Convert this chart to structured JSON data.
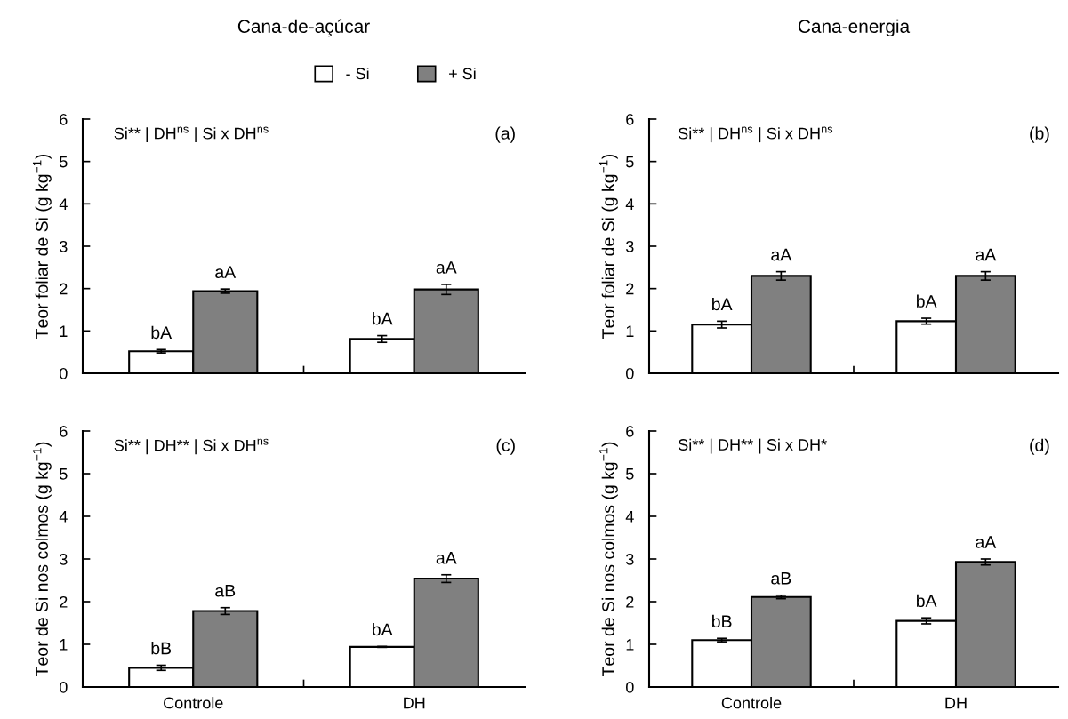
{
  "chart_data": [
    {
      "type": "bar",
      "title": "Cana-de-açúcar",
      "ylabel": "Teor foliar de Si (g kg$^{−1}$)",
      "annotations": [
        "Si** | DH$^{ns}$ | Si x DH$^{ns}$",
        "(a)"
      ],
      "categories": [
        null,
        null
      ],
      "ylim": [
        0,
        6
      ],
      "yticks": [
        0,
        1,
        2,
        3,
        4,
        5,
        6
      ],
      "tick_labels": "y",
      "legend": "top",
      "series": [
        {
          "name": "- Si",
          "color": "#ffffff",
          "values": [
            0.52,
            0.81
          ],
          "errors": [
            0.04,
            0.08
          ],
          "value_labels": [
            "bA",
            "bA"
          ]
        },
        {
          "name": "+ Si",
          "color": "#808080",
          "values": [
            1.94,
            1.98
          ],
          "errors": [
            0.05,
            0.12
          ],
          "value_labels": [
            "aA",
            "aA"
          ]
        }
      ]
    },
    {
      "type": "bar",
      "title": "Cana-energia",
      "ylabel": "Teor foliar de Si (g kg$^{−1}$)",
      "annotations": [
        "Si** | DH$^{ns}$ | Si x DH$^{ns}$",
        "(b)"
      ],
      "categories": [
        null,
        null
      ],
      "ylim": [
        0,
        6
      ],
      "yticks": [
        0,
        1,
        2,
        3,
        4,
        5,
        6
      ],
      "tick_labels": "y",
      "series": [
        {
          "color": "#ffffff",
          "values": [
            1.15,
            1.23
          ],
          "errors": [
            0.08,
            0.07
          ],
          "value_labels": [
            "bA",
            "bA"
          ]
        },
        {
          "color": "#808080",
          "values": [
            2.3,
            2.3
          ],
          "errors": [
            0.1,
            0.1
          ],
          "value_labels": [
            "aA",
            "aA"
          ]
        }
      ]
    },
    {
      "type": "bar",
      "ylabel": "Teor de Si nos colmos (g kg$^{−1}$)",
      "annotations": [
        "Si** | DH** | Si x DH$^{ns}$",
        "(c)"
      ],
      "categories": [
        "Controle",
        "DH"
      ],
      "ylim": [
        0,
        6
      ],
      "yticks": [
        0,
        1,
        2,
        3,
        4,
        5,
        6
      ],
      "series": [
        {
          "color": "#ffffff",
          "values": [
            0.45,
            0.94
          ],
          "errors": [
            0.06,
            0.01
          ],
          "value_labels": [
            "bB",
            "bA"
          ]
        },
        {
          "color": "#808080",
          "values": [
            1.78,
            2.54
          ],
          "errors": [
            0.08,
            0.09
          ],
          "value_labels": [
            "aB",
            "aA"
          ]
        }
      ]
    },
    {
      "type": "bar",
      "ylabel": "Teor de Si nos colmos (g kg$^{−1}$)",
      "annotations": [
        "Si** | DH** | Si x DH*",
        "(d)"
      ],
      "categories": [
        "Controle",
        "DH"
      ],
      "ylim": [
        0,
        6
      ],
      "yticks": [
        0,
        1,
        2,
        3,
        4,
        5,
        6
      ],
      "series": [
        {
          "color": "#ffffff",
          "values": [
            1.1,
            1.55
          ],
          "errors": [
            0.04,
            0.07
          ],
          "value_labels": [
            "bB",
            "bA"
          ]
        },
        {
          "color": "#808080",
          "values": [
            2.11,
            2.93
          ],
          "errors": [
            0.04,
            0.07
          ],
          "value_labels": [
            "aB",
            "aA"
          ]
        }
      ]
    }
  ]
}
